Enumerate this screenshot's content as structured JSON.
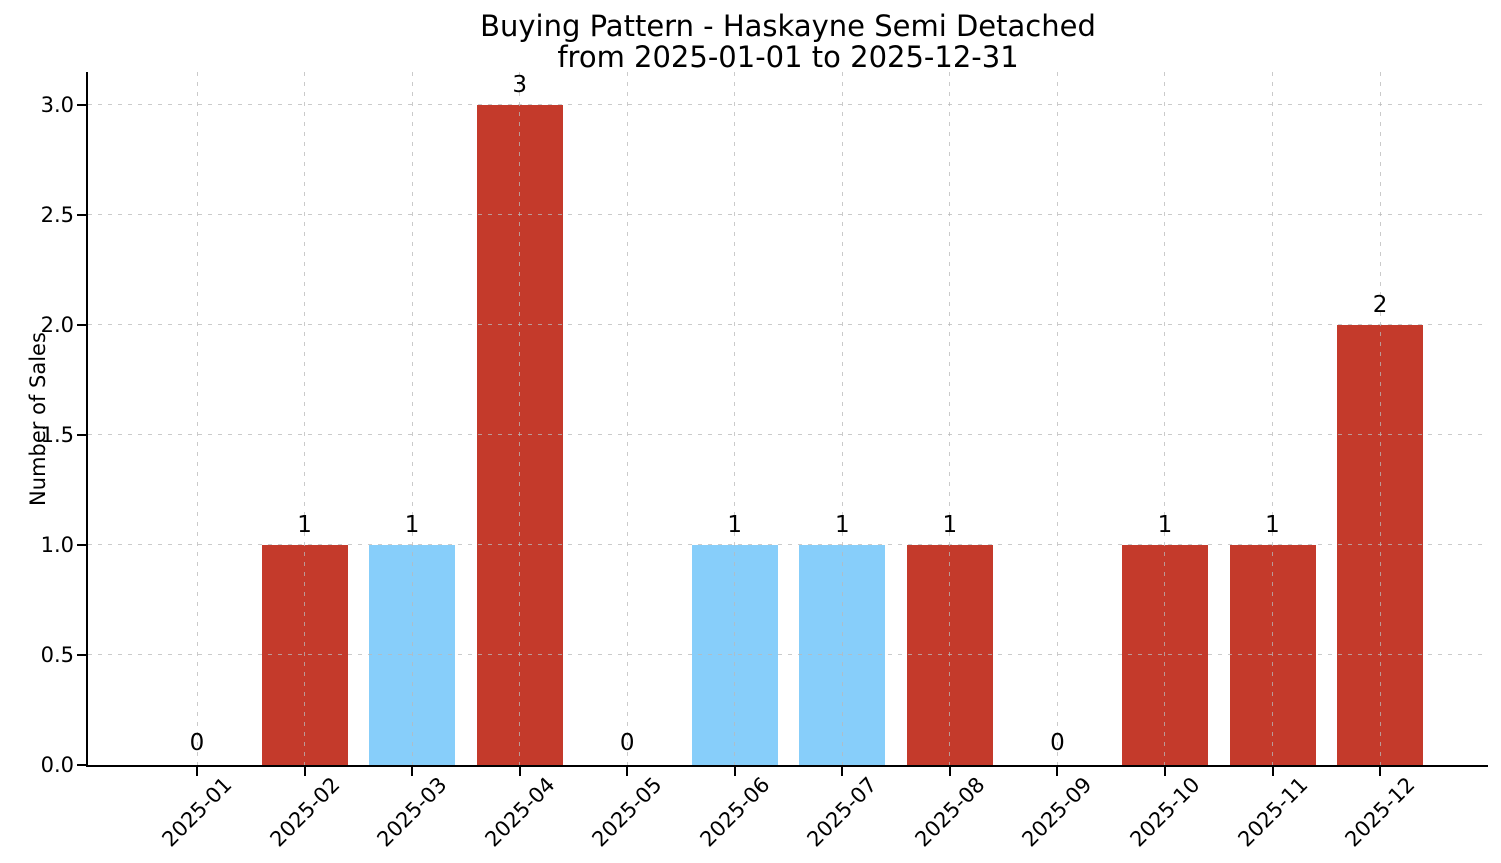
{
  "figure": {
    "title": "Buying Pattern - Haskayne Semi Detached",
    "subtitle": "from 2025-01-01 to 2025-12-31"
  },
  "chart_data": {
    "type": "bar",
    "title": "Buying Pattern - Haskayne Semi Detached",
    "subtitle": "from 2025-01-01 to 2025-12-31",
    "xlabel": "",
    "ylabel": "Number of Sales",
    "categories": [
      "2025-01",
      "2025-02",
      "2025-03",
      "2025-04",
      "2025-05",
      "2025-06",
      "2025-07",
      "2025-08",
      "2025-09",
      "2025-10",
      "2025-11",
      "2025-12"
    ],
    "values": [
      0,
      1,
      1,
      3,
      0,
      1,
      1,
      1,
      0,
      1,
      1,
      2
    ],
    "value_labels": [
      "0",
      "1",
      "1",
      "3",
      "0",
      "1",
      "1",
      "1",
      "0",
      "1",
      "1",
      "2"
    ],
    "bar_colors": [
      "none",
      "#c43a2b",
      "#87cefa",
      "#c43a2b",
      "none",
      "#87cefa",
      "#87cefa",
      "#c43a2b",
      "none",
      "#c43a2b",
      "#c43a2b",
      "#c43a2b"
    ],
    "yticks": [
      0.0,
      0.5,
      1.0,
      1.5,
      2.0,
      2.5,
      3.0
    ],
    "ytick_labels": [
      "0.0",
      "0.5",
      "1.0",
      "1.5",
      "2.0",
      "2.5",
      "3.0"
    ],
    "ylim": [
      0,
      3.15
    ],
    "grid": true,
    "grid_style": "dashed",
    "legend_position": "none",
    "colors": {
      "bar_red": "#c43a2b",
      "bar_blue": "#87cefa",
      "grid": "#c9c9c9",
      "axis": "#000000",
      "text": "#000000",
      "background": "#ffffff"
    }
  }
}
